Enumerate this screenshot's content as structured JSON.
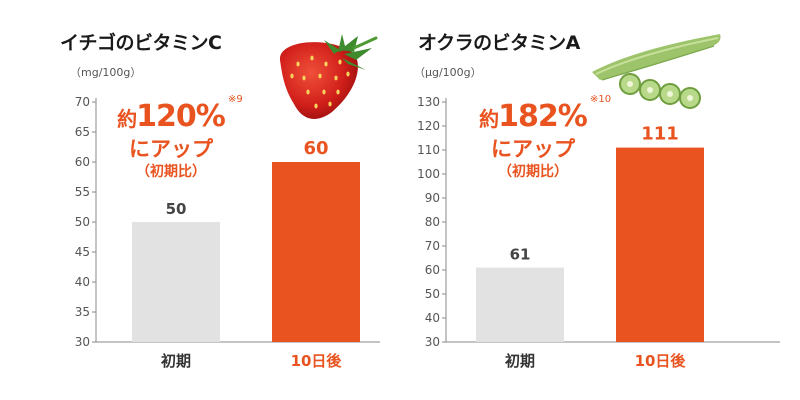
{
  "colors": {
    "accent": "#e8531f",
    "before_bar": "#e2e2e2",
    "axis": "#888888"
  },
  "chart_data": [
    {
      "type": "bar",
      "title": "イチゴのビタミンC",
      "unit": "（mg/100g）",
      "categories": [
        "初期",
        "10日後"
      ],
      "values": [
        50,
        60
      ],
      "value_labels": [
        "50",
        "60"
      ],
      "yticks": [
        "70",
        "65",
        "60",
        "55",
        "50",
        "45",
        "40",
        "35",
        "30"
      ],
      "ylim": [
        30,
        70
      ],
      "grid": false,
      "bar_colors": [
        "#e2e2e2",
        "#e8531f"
      ],
      "callout": {
        "prefix": "約",
        "number": "120%",
        "note": "※9",
        "line2": "にアップ",
        "line3": "（初期比）"
      },
      "image": "strawberry"
    },
    {
      "type": "bar",
      "title": "オクラのビタミンA",
      "unit": "（μg/100g）",
      "categories": [
        "初期",
        "10日後"
      ],
      "values": [
        61,
        111
      ],
      "value_labels": [
        "61",
        "111"
      ],
      "yticks": [
        "130",
        "120",
        "110",
        "100",
        "90",
        "80",
        "70",
        "60",
        "50",
        "40",
        "30"
      ],
      "ylim": [
        30,
        130
      ],
      "grid": false,
      "bar_colors": [
        "#e2e2e2",
        "#e8531f"
      ],
      "callout": {
        "prefix": "約",
        "number": "182%",
        "note": "※10",
        "line2": "にアップ",
        "line3": "（初期比）"
      },
      "image": "okra"
    }
  ]
}
